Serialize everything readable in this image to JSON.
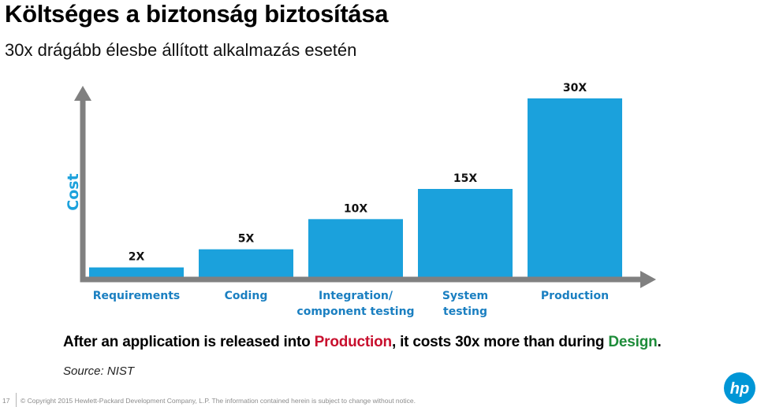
{
  "title": "Költséges a biztonság biztosítása",
  "subtitle": "30x drágább élesbe állított alkalmazás esetén",
  "caption": {
    "part1": "After an application is released into ",
    "highlight1": "Production",
    "part2": ", it costs 30x more than during ",
    "highlight2": "Design",
    "part3": "."
  },
  "source": "Source:  NIST",
  "footer": {
    "page_number": "17",
    "copyright": "© Copyright 2015 Hewlett-Packard   Development  Company, L.P.  The information  contained  herein is subject to change without notice."
  },
  "logo_text": "hp",
  "colors": {
    "bar": "#1ba1dc",
    "axis": "#808080",
    "axis_label": "#1ba1dc",
    "category_label": "#1a7fc1",
    "production": "#c8102e",
    "design": "#1e8c3a"
  },
  "chart_data": {
    "type": "bar",
    "categories": [
      [
        "Requirements"
      ],
      [
        "Coding"
      ],
      [
        "Integration/",
        "component testing"
      ],
      [
        "System",
        "testing"
      ],
      [
        "Production"
      ]
    ],
    "values": [
      2,
      5,
      10,
      15,
      30
    ],
    "value_labels": [
      "2X",
      "5X",
      "10X",
      "15X",
      "30X"
    ],
    "ylabel": "Cost",
    "xlabel": "",
    "ylim": [
      0,
      30
    ],
    "grid": false,
    "legend": "none"
  }
}
